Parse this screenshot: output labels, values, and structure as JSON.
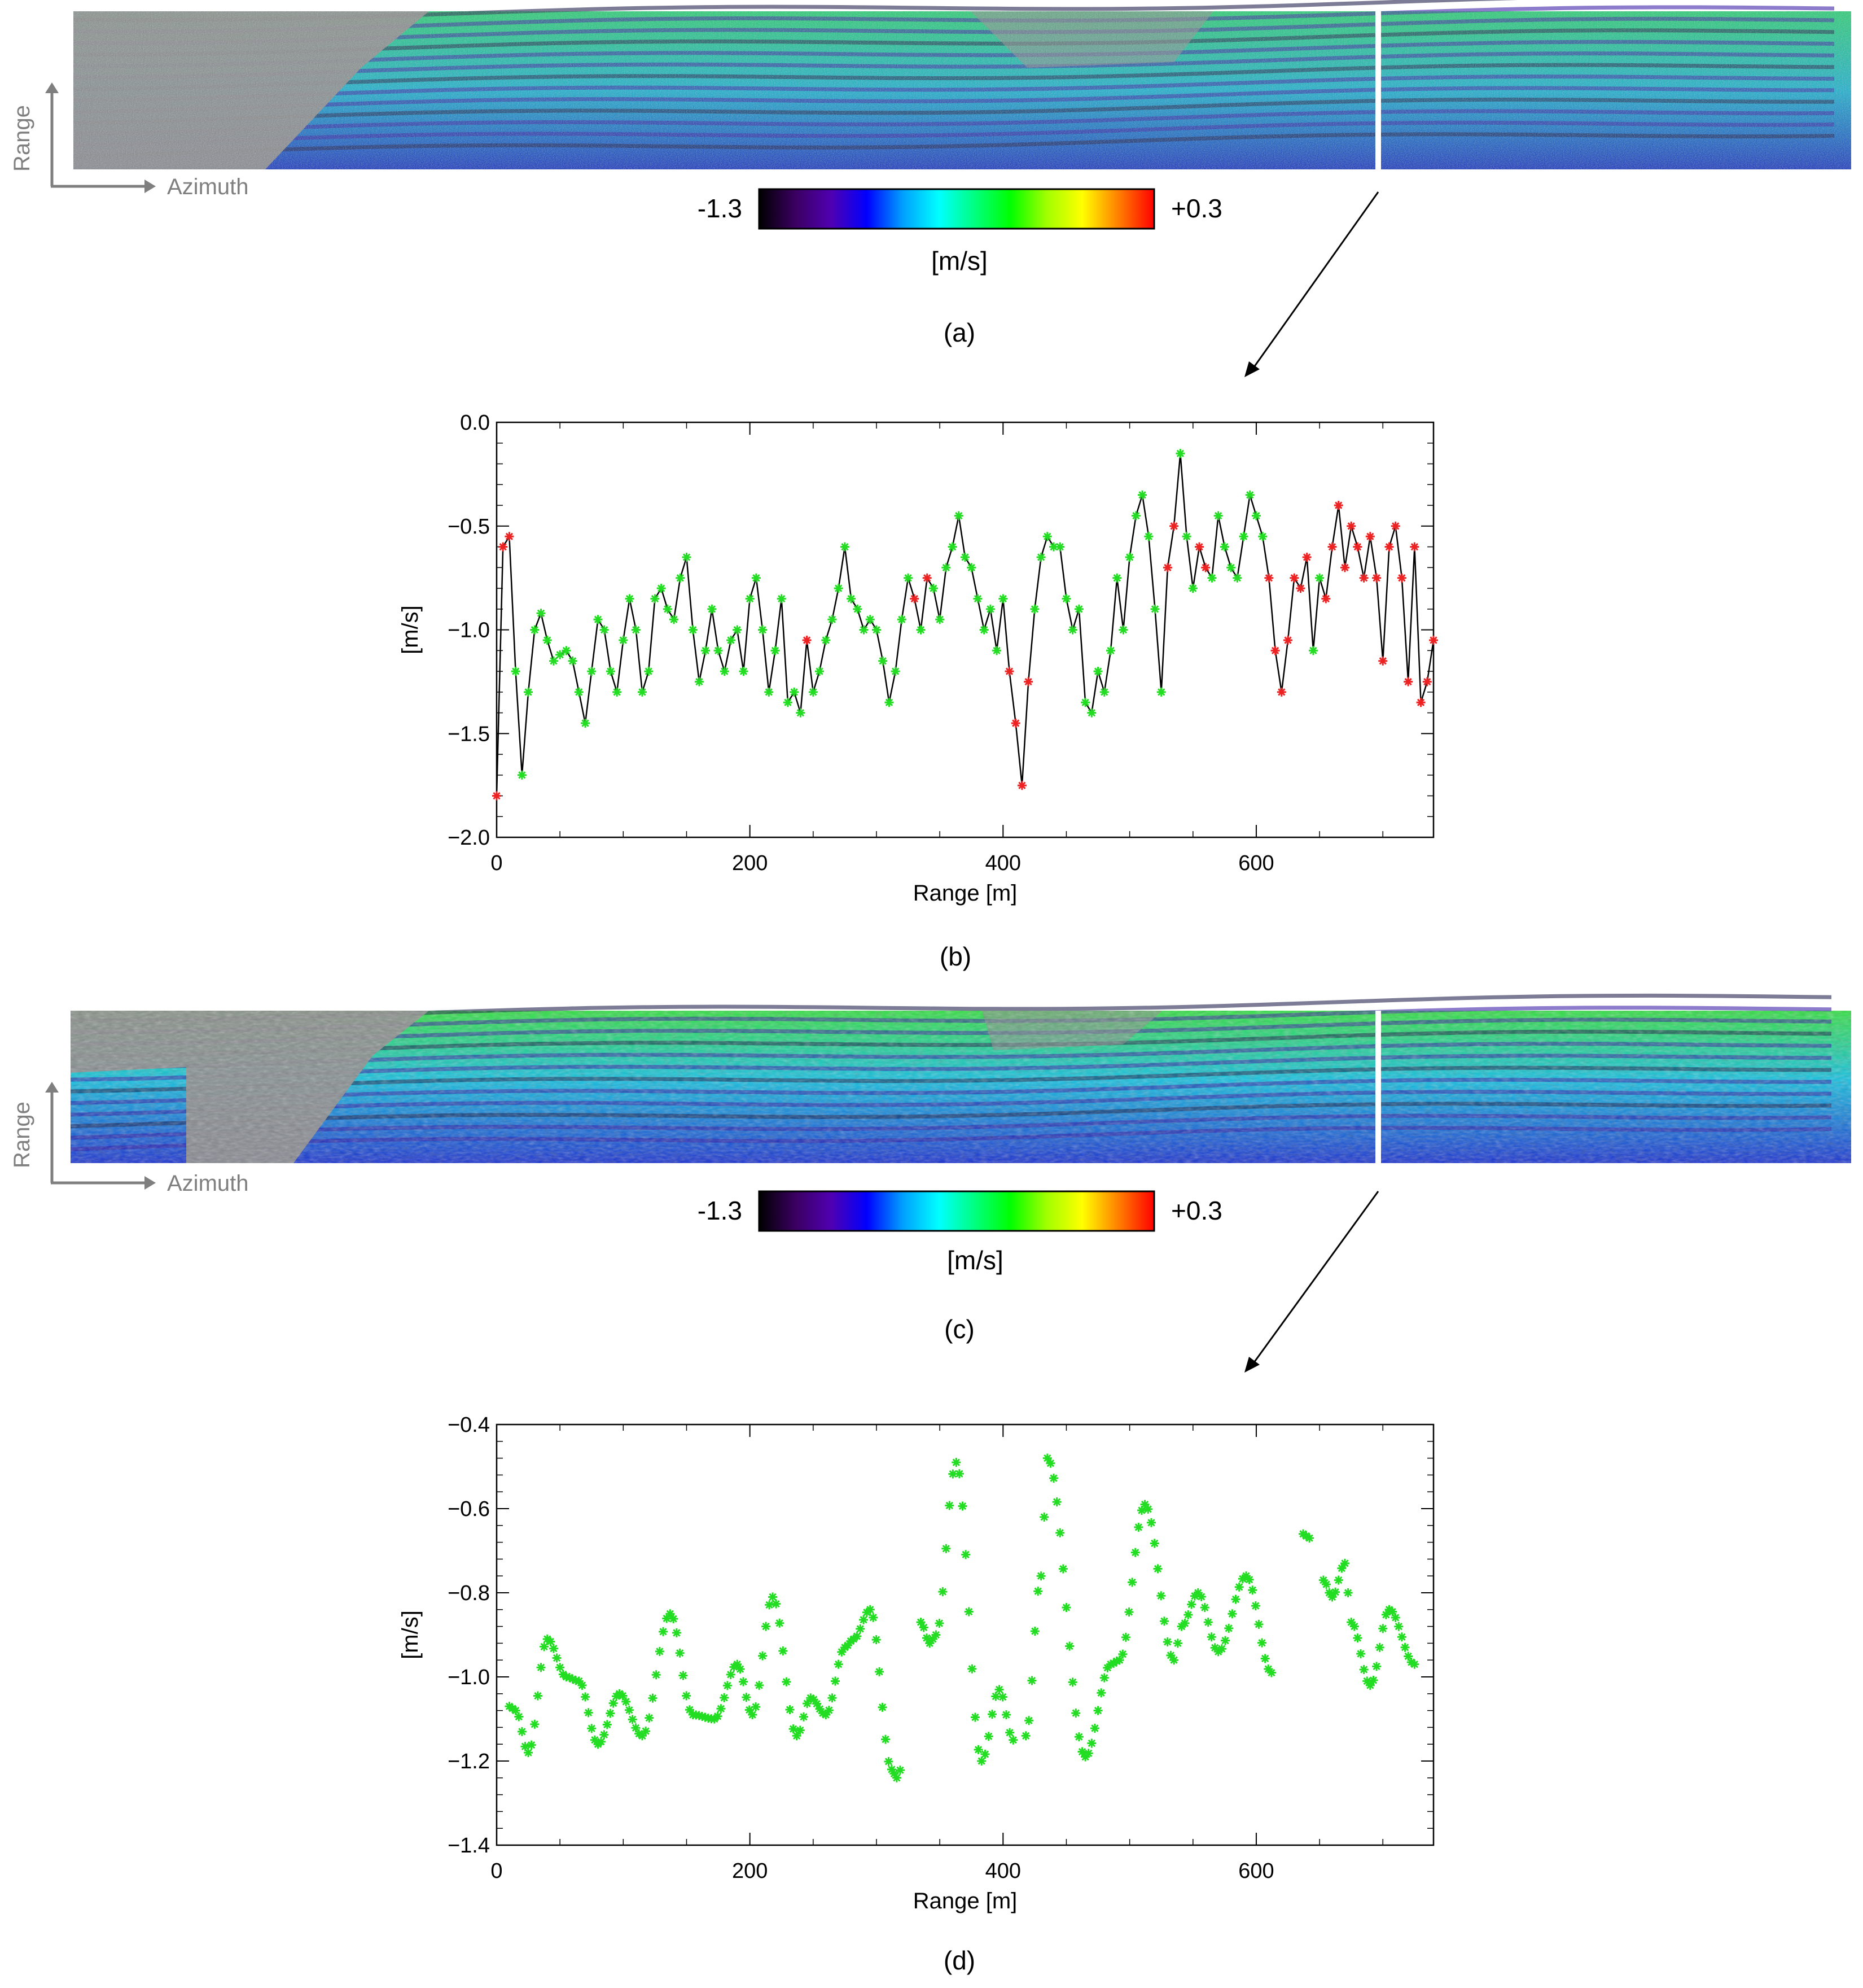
{
  "colors": {
    "gray": "#8c8c8c",
    "axis_gray": "#7f7f7f",
    "green": "#22dd22",
    "red": "#ee2222",
    "line": "#000000"
  },
  "panels": {
    "a": {
      "caption": "(a)",
      "range_label": "Range",
      "azimuth_label": "Azimuth",
      "colorbar": {
        "min_label": "-1.3",
        "max_label": "+0.3",
        "unit": "[m/s]",
        "min": -1.3,
        "max": 0.3,
        "colors": [
          "#000000",
          "#3a0060",
          "#5000b0",
          "#0000ff",
          "#00a0ff",
          "#00ffff",
          "#00ff80",
          "#00ff00",
          "#a0ff00",
          "#ffff00",
          "#ff8000",
          "#ff0000"
        ]
      }
    },
    "c": {
      "caption": "(c)",
      "range_label": "Range",
      "azimuth_label": "Azimuth",
      "colorbar": {
        "min_label": "-1.3",
        "max_label": "+0.3",
        "unit": "[m/s]",
        "min": -1.3,
        "max": 0.3,
        "colors": [
          "#000000",
          "#3a0060",
          "#5000b0",
          "#0000ff",
          "#00a0ff",
          "#00ffff",
          "#00ff80",
          "#00ff00",
          "#a0ff00",
          "#ffff00",
          "#ff8000",
          "#ff0000"
        ]
      }
    },
    "b": {
      "caption": "(b)"
    },
    "d": {
      "caption": "(d)"
    }
  },
  "chart_data": [
    {
      "id": "b",
      "type": "line",
      "xlabel": "Range [m]",
      "ylabel": "[m/s]",
      "xlim": [
        0,
        740
      ],
      "ylim": [
        -2.0,
        0.0
      ],
      "xticks": [
        0,
        200,
        400,
        600
      ],
      "yticks": [
        0.0,
        -0.5,
        -1.0,
        -1.5,
        -2.0
      ],
      "ytick_labels": [
        "0.0",
        "−0.5",
        "−1.0",
        "−1.5",
        "−2.0"
      ],
      "markers": "asterisk",
      "series": [
        {
          "x": [
            0,
            5,
            10,
            15,
            20,
            25,
            30,
            35,
            40,
            45,
            50,
            55,
            60,
            65,
            70,
            75,
            80,
            85,
            90,
            95,
            100,
            105,
            110,
            115,
            120,
            125,
            130,
            135,
            140,
            145,
            150,
            155,
            160,
            165,
            170,
            175,
            180,
            185,
            190,
            195,
            200,
            205,
            210,
            215,
            220,
            225,
            230,
            235,
            240,
            245,
            250,
            255,
            260,
            265,
            270,
            275,
            280,
            285,
            290,
            295,
            300,
            305,
            310,
            315,
            320,
            325,
            330,
            335,
            340,
            345,
            350,
            355,
            360,
            365,
            370,
            375,
            380,
            385,
            390,
            395,
            400,
            405,
            410,
            415,
            420,
            425,
            430,
            435,
            440,
            445,
            450,
            455,
            460,
            465,
            470,
            475,
            480,
            485,
            490,
            495,
            500,
            505,
            510,
            515,
            520,
            525,
            530,
            535,
            540,
            545,
            550,
            555,
            560,
            565,
            570,
            575,
            580,
            585,
            590,
            595,
            600,
            605,
            610,
            615,
            620,
            625,
            630,
            635,
            640,
            645,
            650,
            655,
            660,
            665,
            670,
            675,
            680,
            685,
            690,
            695,
            700,
            705,
            710,
            715,
            720,
            725,
            730,
            735,
            740
          ],
          "y": [
            -1.8,
            -0.6,
            -0.55,
            -1.2,
            -1.7,
            -1.3,
            -1.0,
            -0.92,
            -1.05,
            -1.15,
            -1.12,
            -1.1,
            -1.15,
            -1.3,
            -1.45,
            -1.2,
            -0.95,
            -1.0,
            -1.2,
            -1.3,
            -1.05,
            -0.85,
            -1.0,
            -1.3,
            -1.2,
            -0.85,
            -0.8,
            -0.9,
            -0.95,
            -0.75,
            -0.65,
            -1.0,
            -1.25,
            -1.1,
            -0.9,
            -1.1,
            -1.2,
            -1.05,
            -1.0,
            -1.2,
            -0.85,
            -0.75,
            -1.0,
            -1.3,
            -1.1,
            -0.85,
            -1.35,
            -1.3,
            -1.4,
            -1.05,
            -1.3,
            -1.2,
            -1.05,
            -0.95,
            -0.8,
            -0.6,
            -0.85,
            -0.9,
            -1.0,
            -0.95,
            -1.0,
            -1.15,
            -1.35,
            -1.2,
            -0.95,
            -0.75,
            -0.85,
            -1.0,
            -0.75,
            -0.8,
            -0.95,
            -0.7,
            -0.6,
            -0.45,
            -0.65,
            -0.7,
            -0.85,
            -1.0,
            -0.9,
            -1.1,
            -0.85,
            -1.2,
            -1.45,
            -1.75,
            -1.25,
            -0.9,
            -0.65,
            -0.55,
            -0.6,
            -0.6,
            -0.85,
            -1.0,
            -0.9,
            -1.35,
            -1.4,
            -1.2,
            -1.3,
            -1.1,
            -0.75,
            -1.0,
            -0.65,
            -0.45,
            -0.35,
            -0.55,
            -0.9,
            -1.3,
            -0.7,
            -0.5,
            -0.15,
            -0.55,
            -0.8,
            -0.6,
            -0.7,
            -0.75,
            -0.45,
            -0.6,
            -0.7,
            -0.75,
            -0.55,
            -0.35,
            -0.45,
            -0.55,
            -0.75,
            -1.1,
            -1.3,
            -1.05,
            -0.75,
            -0.8,
            -0.65,
            -1.1,
            -0.75,
            -0.85,
            -0.6,
            -0.4,
            -0.7,
            -0.5,
            -0.6,
            -0.75,
            -0.55,
            -0.75,
            -1.15,
            -0.6,
            -0.5,
            -0.75,
            -1.25,
            -0.6,
            -1.35,
            -1.25,
            -1.05
          ],
          "red_indices": [
            0,
            1,
            2,
            49,
            66,
            68,
            81,
            82,
            83,
            84,
            106,
            107,
            111,
            112,
            122,
            123,
            124,
            125,
            126,
            127,
            128,
            131,
            132,
            133,
            134,
            135,
            136,
            137,
            138,
            139,
            140,
            141,
            142,
            143,
            144,
            145,
            146,
            147,
            148
          ]
        }
      ]
    },
    {
      "id": "d",
      "type": "scatter",
      "xlabel": "Range [m]",
      "ylabel": "[m/s]",
      "xlim": [
        0,
        740
      ],
      "ylim": [
        -1.4,
        -0.4
      ],
      "xticks": [
        0,
        200,
        400,
        600
      ],
      "yticks": [
        -0.4,
        -0.6,
        -0.8,
        -1.0,
        -1.2,
        -1.4
      ],
      "ytick_labels": [
        "−0.4",
        "−0.6",
        "−0.8",
        "−1.0",
        "−1.2",
        "−1.4"
      ],
      "markers": "asterisk",
      "knots": [
        [
          10,
          -1.07
        ],
        [
          15,
          -1.08
        ],
        [
          25,
          -1.18
        ],
        [
          40,
          -0.91
        ],
        [
          55,
          -1.0
        ],
        [
          65,
          -1.01
        ],
        [
          80,
          -1.16
        ],
        [
          97,
          -1.04
        ],
        [
          115,
          -1.14
        ],
        [
          137,
          -0.85
        ],
        [
          155,
          -1.09
        ],
        [
          172,
          -1.1
        ],
        [
          190,
          -0.97
        ],
        [
          202,
          -1.09
        ],
        [
          218,
          -0.81
        ],
        [
          237,
          -1.14
        ],
        [
          248,
          -1.05
        ],
        [
          260,
          -1.09
        ],
        [
          275,
          -0.93
        ],
        [
          282,
          -0.91
        ],
        [
          295,
          -0.84
        ],
        [
          312,
          -1.22
        ],
        [
          316,
          -1.24
        ],
        [
          335,
          -0.87
        ],
        [
          342,
          -0.92
        ],
        [
          347,
          -0.9
        ],
        [
          363,
          -0.49
        ],
        [
          383,
          -1.2
        ],
        [
          397,
          -1.03
        ],
        [
          408,
          -1.15
        ],
        [
          418,
          -1.14
        ],
        [
          430,
          -0.76
        ],
        [
          435,
          -0.48
        ],
        [
          465,
          -1.19
        ],
        [
          485,
          -0.97
        ],
        [
          492,
          -0.96
        ],
        [
          512,
          -0.59
        ],
        [
          535,
          -0.96
        ],
        [
          541,
          -0.88
        ],
        [
          554,
          -0.8
        ],
        [
          570,
          -0.94
        ],
        [
          592,
          -0.76
        ],
        [
          612,
          -0.99
        ],
        [
          637,
          -0.66
        ],
        [
          642,
          -0.67
        ],
        [
          653,
          -0.77
        ],
        [
          660,
          -0.81
        ],
        [
          670,
          -0.73
        ],
        [
          675,
          -0.87
        ],
        [
          690,
          -1.02
        ],
        [
          705,
          -0.84
        ],
        [
          725,
          -0.97
        ]
      ],
      "gaps": [
        [
          318,
          335
        ],
        [
          408,
          418
        ],
        [
          612,
          637
        ],
        [
          642,
          653
        ]
      ]
    }
  ]
}
